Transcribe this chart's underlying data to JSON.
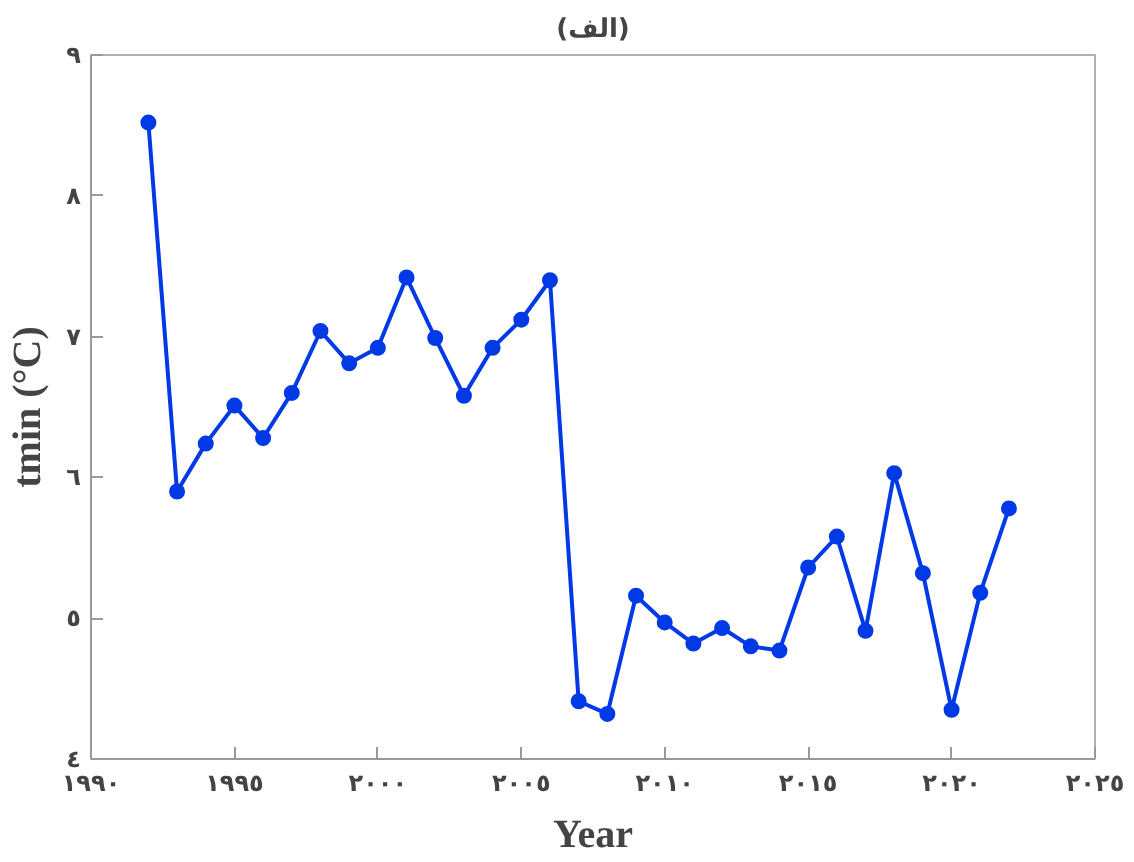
{
  "chart_data": {
    "type": "line",
    "title": "(الف)",
    "xlabel": "Year",
    "ylabel": "tmin (°C)",
    "x": [
      1992,
      1993,
      1994,
      1995,
      1996,
      1997,
      1998,
      1999,
      2000,
      2001,
      2002,
      2003,
      2004,
      2005,
      2006,
      2007,
      2008,
      2009,
      2010,
      2011,
      2012,
      2013,
      2014,
      2015,
      2016,
      2017,
      2018,
      2019,
      2020,
      2021,
      2022
    ],
    "series": [
      {
        "color": "#0039e6",
        "values": [
          8.52,
          5.9,
          6.24,
          6.51,
          6.28,
          6.6,
          7.04,
          6.81,
          6.92,
          7.42,
          6.99,
          6.58,
          6.92,
          7.12,
          7.4,
          4.41,
          4.32,
          5.16,
          4.97,
          4.82,
          4.93,
          4.8,
          4.77,
          5.36,
          5.58,
          4.91,
          6.03,
          5.32,
          4.35,
          5.18,
          5.78
        ]
      }
    ],
    "xlim": [
      1990,
      2025
    ],
    "xticks": [
      {
        "value": 1990,
        "label": "١٩٩٠"
      },
      {
        "value": 1995,
        "label": "١٩٩٥"
      },
      {
        "value": 2000,
        "label": "٢٠٠٠"
      },
      {
        "value": 2005,
        "label": "٢٠٠٥"
      },
      {
        "value": 2010,
        "label": "٢٠١٠"
      },
      {
        "value": 2015,
        "label": "٢٠١٥"
      },
      {
        "value": 2020,
        "label": "٢٠٢٠"
      },
      {
        "value": 2025,
        "label": "٢٠٢٥"
      }
    ],
    "ylim": [
      4,
      9
    ],
    "yticks": [
      {
        "value": 4,
        "label": "٤"
      },
      {
        "value": 5,
        "label": "٥"
      },
      {
        "value": 6,
        "label": "٦"
      },
      {
        "value": 7,
        "label": "٧"
      },
      {
        "value": 8,
        "label": "٨"
      },
      {
        "value": 9,
        "label": "٩"
      }
    ],
    "grid": false,
    "marker": "circle",
    "line_style": "solid"
  }
}
